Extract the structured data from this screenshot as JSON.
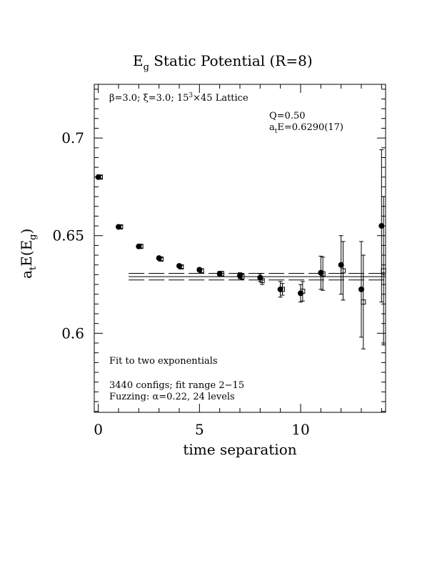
{
  "chart_data": {
    "type": "scatter",
    "title_main": "E",
    "title_sub": "g",
    "title_rest": " Static Potential (R=8)",
    "xlabel": "time separation",
    "ylabel_a": "a",
    "ylabel_t": "t",
    "ylabel_mid": "E(E",
    "ylabel_g": "g",
    "ylabel_end": ")",
    "xlim": [
      -0.2,
      14.2
    ],
    "ylim": [
      0.5595,
      0.7275
    ],
    "xticks": [
      0,
      5,
      10
    ],
    "xtick_labels": [
      "0",
      "5",
      "10"
    ],
    "yticks": [
      0.6,
      0.65,
      0.7
    ],
    "ytick_labels": [
      "0.6",
      "0.65",
      "0.7"
    ],
    "annotations": {
      "lattice_beta": "β=3.0; ξ=3.0; 15",
      "lattice_sup": "3",
      "lattice_rest": "×45 Lattice",
      "q": "Q=0.50",
      "energy_a": "a",
      "energy_t": "t",
      "energy_rest": "E=0.6290(17)",
      "fit_type": "Fit to two exponentials",
      "configs": "3440 configs; fit range 2−15",
      "fuzzing": "Fuzzing: α=0.22, 24 levels"
    },
    "fit": {
      "center": 0.629,
      "err": 0.0017,
      "x_start": 1.5,
      "x_end": 14.2
    },
    "series": [
      {
        "marker": "filled-circle",
        "points": [
          {
            "x": 0,
            "y": 0.68,
            "err": 0.0008
          },
          {
            "x": 1,
            "y": 0.6545,
            "err": 0.0008
          },
          {
            "x": 2,
            "y": 0.6445,
            "err": 0.0008
          },
          {
            "x": 3,
            "y": 0.6385,
            "err": 0.0008
          },
          {
            "x": 4,
            "y": 0.6345,
            "err": 0.0008
          },
          {
            "x": 5,
            "y": 0.6325,
            "err": 0.001
          },
          {
            "x": 6,
            "y": 0.6305,
            "err": 0.0012
          },
          {
            "x": 7,
            "y": 0.6295,
            "err": 0.0015
          },
          {
            "x": 8,
            "y": 0.6285,
            "err": 0.002
          },
          {
            "x": 9,
            "y": 0.6225,
            "err": 0.004
          },
          {
            "x": 10,
            "y": 0.6205,
            "err": 0.0045
          },
          {
            "x": 11,
            "y": 0.631,
            "err": 0.0085
          },
          {
            "x": 12,
            "y": 0.635,
            "err": 0.015
          },
          {
            "x": 13,
            "y": 0.6225,
            "err": 0.0245
          },
          {
            "x": 14,
            "y": 0.655,
            "err": 0.039
          }
        ]
      },
      {
        "marker": "open-square",
        "points": [
          {
            "x": 0.1,
            "y": 0.68,
            "err": 0.0008
          },
          {
            "x": 1.1,
            "y": 0.6545,
            "err": 0.0008
          },
          {
            "x": 2.1,
            "y": 0.6445,
            "err": 0.0008
          },
          {
            "x": 3.1,
            "y": 0.638,
            "err": 0.0008
          },
          {
            "x": 4.1,
            "y": 0.634,
            "err": 0.0008
          },
          {
            "x": 5.1,
            "y": 0.632,
            "err": 0.001
          },
          {
            "x": 6.1,
            "y": 0.6305,
            "err": 0.0012
          },
          {
            "x": 7.1,
            "y": 0.629,
            "err": 0.0015
          },
          {
            "x": 8.1,
            "y": 0.627,
            "err": 0.002
          },
          {
            "x": 9.1,
            "y": 0.6225,
            "err": 0.003
          },
          {
            "x": 10.1,
            "y": 0.6215,
            "err": 0.005
          },
          {
            "x": 11.1,
            "y": 0.6305,
            "err": 0.0085
          },
          {
            "x": 12.1,
            "y": 0.632,
            "err": 0.015
          },
          {
            "x": 13.1,
            "y": 0.616,
            "err": 0.024
          },
          {
            "x": 14.1,
            "y": 0.632,
            "err": 0.038
          }
        ]
      }
    ]
  }
}
